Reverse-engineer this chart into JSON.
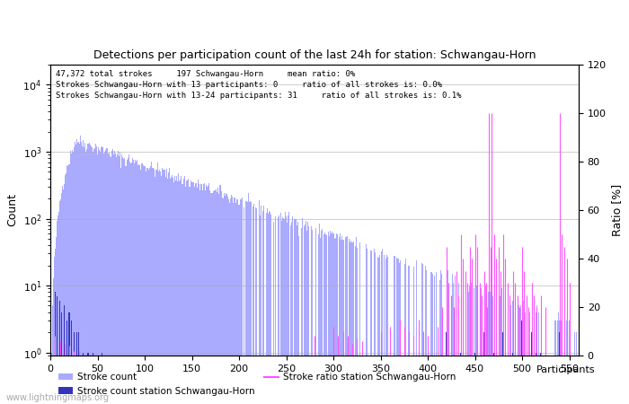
{
  "title": "Detections per participation count of the last 24h for station: Schwangau-Horn",
  "annotation_lines": [
    "47,372 total strokes     197 Schwangau-Horn     mean ratio: 0%",
    "Strokes Schwangau-Horn with 13 participants: 0     ratio of all strokes is: 0.0%",
    "Strokes Schwangau-Horn with 13-24 participants: 31     ratio of all strokes is: 0.1%"
  ],
  "xlabel": "Participants",
  "ylabel_left": "Count",
  "ylabel_right": "Ratio [%]",
  "xlim": [
    0,
    560
  ],
  "ylim_log": [
    0.9,
    20000.0
  ],
  "ylim_right": [
    0,
    120
  ],
  "bar_color_global": "#aaaaff",
  "bar_color_station": "#3333bb",
  "line_color_ratio": "#ff55ff",
  "legend_labels": [
    "Stroke count",
    "Stroke count station Schwangau-Horn",
    "Stroke ratio station Schwangau-Horn"
  ],
  "watermark": "www.lightningmaps.org",
  "seed": 42
}
